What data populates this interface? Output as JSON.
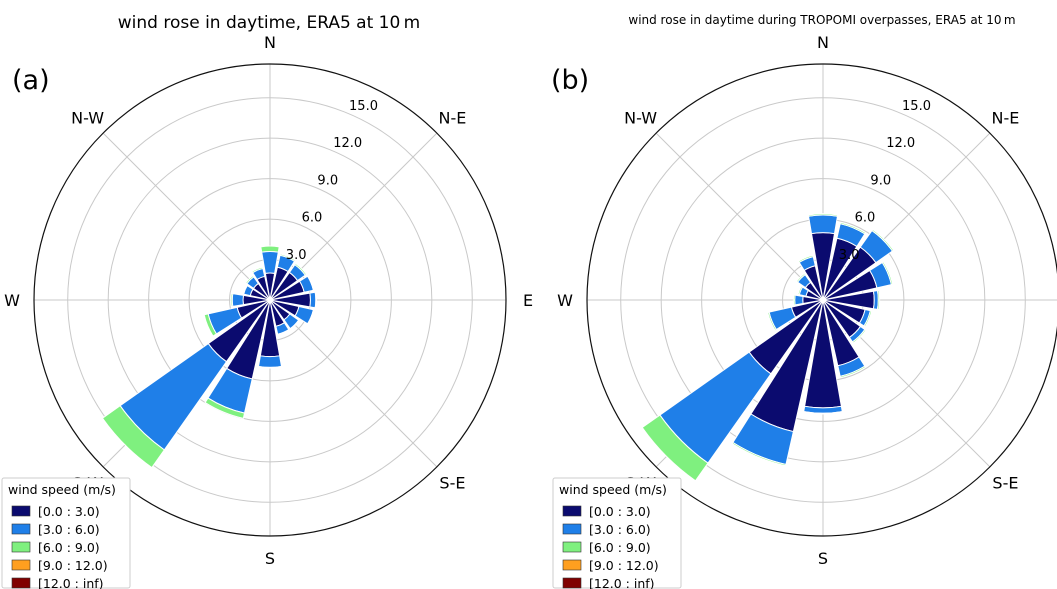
{
  "colors": {
    "bin0": "#0b0b6f",
    "bin1": "#1f7fe8",
    "bin2": "#7ff07f",
    "bin3": "#ff9f1f",
    "bin4": "#800000",
    "grid": "#c9c9c9",
    "frame": "#111111"
  },
  "legend": {
    "title": "wind speed (m/s)",
    "bins": [
      "[0.0 : 3.0)",
      "[3.0 : 6.0)",
      "[6.0 : 9.0)",
      "[9.0 : 12.0)",
      "[12.0 : inf)"
    ]
  },
  "chart_data": [
    {
      "type": "windrose",
      "panel_label": "(a)",
      "title": "wind rose in daytime, ERA5 at 10 m",
      "directions": [
        "N",
        "N-E",
        "E",
        "S-E",
        "S",
        "S-W",
        "W",
        "N-W"
      ],
      "radial_ticks": [
        "3.0",
        "6.0",
        "9.0",
        "12.0",
        "15.0"
      ],
      "rmax": 17.5,
      "sector_angles_deg": [
        0,
        22.5,
        45,
        67.5,
        90,
        112.5,
        135,
        157.5,
        180,
        202.5,
        225,
        247.5,
        270,
        292.5,
        315,
        337.5
      ],
      "bins": [
        "[0.0 : 3.0)",
        "[3.0 : 6.0)",
        "[6.0 : 9.0)",
        "[9.0 : 12.0)",
        "[12.0 : inf)"
      ],
      "stacks": [
        [
          2.0,
          3.6,
          4.0,
          0,
          0
        ],
        [
          2.5,
          3.4,
          3.5,
          0,
          0
        ],
        [
          2.5,
          3.2,
          3.3,
          0,
          0
        ],
        [
          2.6,
          3.3,
          3.35,
          0,
          0
        ],
        [
          3.0,
          3.4,
          3.45,
          0,
          0
        ],
        [
          2.2,
          3.3,
          3.35,
          0,
          0
        ],
        [
          1.8,
          2.6,
          2.65,
          0,
          0
        ],
        [
          2.0,
          2.6,
          2.65,
          0,
          0
        ],
        [
          4.2,
          5.0,
          5.05,
          0,
          0
        ],
        [
          6.0,
          8.6,
          9.0,
          0,
          0
        ],
        [
          5.6,
          13.6,
          15.2,
          0,
          0
        ],
        [
          2.5,
          4.7,
          5.0,
          0,
          0
        ],
        [
          2.0,
          2.8,
          2.9,
          0,
          0
        ],
        [
          1.5,
          2.0,
          2.05,
          0,
          0
        ],
        [
          1.5,
          2.1,
          2.2,
          0,
          0
        ],
        [
          1.8,
          2.4,
          2.5,
          0,
          0
        ]
      ]
    },
    {
      "type": "windrose",
      "panel_label": "(b)",
      "title": "wind rose in daytime during TROPOMI overpasses, ERA5 at 10 m",
      "directions": [
        "N",
        "N-E",
        "E",
        "S-E",
        "S",
        "S-W",
        "W",
        "N-W"
      ],
      "radial_ticks": [
        "3.0",
        "6.0",
        "9.0",
        "12.0",
        "15.0"
      ],
      "rmax": 17.5,
      "sector_angles_deg": [
        0,
        22.5,
        45,
        67.5,
        90,
        112.5,
        135,
        157.5,
        180,
        202.5,
        225,
        247.5,
        270,
        292.5,
        315,
        337.5
      ],
      "bins": [
        "[0.0 : 3.0)",
        "[3.0 : 6.0)",
        "[6.0 : 9.0)",
        "[9.0 : 12.0)",
        "[12.0 : inf)"
      ],
      "stacks": [
        [
          5.0,
          6.3,
          6.4,
          0,
          0
        ],
        [
          4.7,
          5.8,
          5.9,
          0,
          0
        ],
        [
          4.8,
          6.3,
          6.4,
          0,
          0
        ],
        [
          4.1,
          5.2,
          5.3,
          0,
          0
        ],
        [
          3.8,
          4.1,
          4.2,
          0,
          0
        ],
        [
          3.2,
          3.6,
          3.7,
          0,
          0
        ],
        [
          3.4,
          3.8,
          3.9,
          0,
          0
        ],
        [
          5.0,
          5.8,
          5.9,
          0,
          0
        ],
        [
          8.0,
          8.4,
          8.45,
          0,
          0
        ],
        [
          10.0,
          12.5,
          12.6,
          0,
          0
        ],
        [
          6.7,
          14.8,
          16.4,
          0,
          0
        ],
        [
          2.4,
          4.1,
          4.2,
          0,
          0
        ],
        [
          1.5,
          2.1,
          2.2,
          0,
          0
        ],
        [
          1.3,
          1.8,
          1.9,
          0,
          0
        ],
        [
          1.6,
          2.3,
          2.4,
          0,
          0
        ],
        [
          2.6,
          3.3,
          3.4,
          0,
          0
        ]
      ]
    }
  ]
}
